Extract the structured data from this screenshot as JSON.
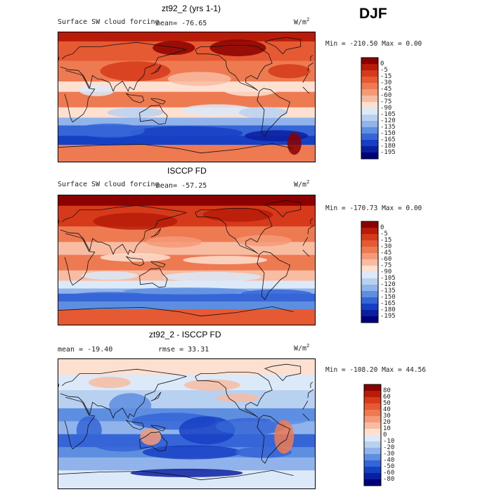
{
  "season": "DJF",
  "panels": [
    {
      "title": "zt92_2 (yrs 1-1)",
      "field_label": "Surface SW cloud forcing",
      "mean_text": "mean=  -76.65",
      "rmse_text": "",
      "units": "W/m",
      "units_sup": "2",
      "minmax": "Min = -210.50 Max =    0.00",
      "colorbar_levels": [
        "0",
        "-5",
        "-15",
        "-30",
        "-45",
        "-60",
        "-75",
        "-90",
        "-105",
        "-120",
        "-135",
        "-150",
        "-165",
        "-180",
        "-195"
      ],
      "colorbar_colors": [
        "#8b0000",
        "#b81c08",
        "#d63a1a",
        "#e55a33",
        "#ee7a52",
        "#f49a78",
        "#f8bca2",
        "#fde0d0",
        "#dce9f8",
        "#b8d1f1",
        "#8fb3ea",
        "#5e8ee0",
        "#3565d6",
        "#1640c4",
        "#0a1fa0",
        "#00007a"
      ],
      "mode": "model"
    },
    {
      "title": "ISCCP FD",
      "field_label": "Surface SW cloud forcing",
      "mean_text": "mean=  -57.25",
      "rmse_text": "",
      "units": "W/m",
      "units_sup": "2",
      "minmax": "Min = -170.73 Max =    0.00",
      "colorbar_levels": [
        "0",
        "-5",
        "-15",
        "-30",
        "-45",
        "-60",
        "-75",
        "-90",
        "-105",
        "-120",
        "-135",
        "-150",
        "-165",
        "-180",
        "-195"
      ],
      "colorbar_colors": [
        "#8b0000",
        "#b81c08",
        "#d63a1a",
        "#e55a33",
        "#ee7a52",
        "#f49a78",
        "#f8bca2",
        "#fde0d0",
        "#dce9f8",
        "#b8d1f1",
        "#8fb3ea",
        "#5e8ee0",
        "#3565d6",
        "#1640c4",
        "#0a1fa0",
        "#00007a"
      ],
      "mode": "obs"
    },
    {
      "title": "zt92_2 - ISCCP FD",
      "field_label": "",
      "mean_text": "mean = -19.40",
      "rmse_text": "rmse =   33.31",
      "units": "W/m",
      "units_sup": "2",
      "minmax": "Min = -108.20 Max =  44.56",
      "colorbar_levels": [
        "80",
        "60",
        "50",
        "40",
        "30",
        "20",
        "10",
        "0",
        "-10",
        "-20",
        "-30",
        "-40",
        "-50",
        "-60",
        "-80"
      ],
      "colorbar_colors": [
        "#8b0000",
        "#b81c08",
        "#d63a1a",
        "#e55a33",
        "#ee7a52",
        "#f49a78",
        "#f8bca2",
        "#fde0d0",
        "#dce9f8",
        "#b8d1f1",
        "#8fb3ea",
        "#5e8ee0",
        "#3565d6",
        "#1640c4",
        "#0a1fa0",
        "#00007a"
      ],
      "mode": "diff"
    }
  ]
}
